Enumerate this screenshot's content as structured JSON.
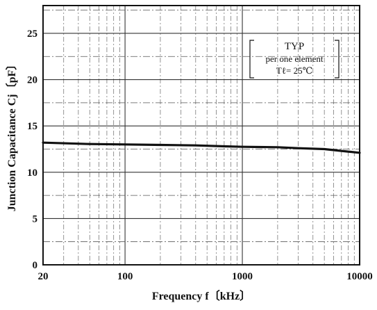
{
  "chart_data": {
    "type": "line",
    "x_scale": "log",
    "xlabel": "Frequency f〔kHz〕",
    "ylabel": "Junction Capacitance Cj〔pF〕",
    "xlim": [
      20,
      10000
    ],
    "ylim": [
      0,
      28
    ],
    "x_ticks": [
      20,
      100,
      1000,
      10000
    ],
    "x_tick_labels": [
      "20",
      "100",
      "1000",
      "10000"
    ],
    "y_ticks": [
      0,
      5,
      10,
      15,
      20,
      25
    ],
    "y_tick_labels": [
      "0",
      "5",
      "10",
      "15",
      "20",
      "25"
    ],
    "grid": true,
    "annotation": {
      "lines": [
        "TYP",
        "per one element",
        "Tℓ= 25℃"
      ],
      "position": "top-right"
    },
    "series": [
      {
        "x": [
          20,
          50,
          100,
          200,
          400,
          700,
          1000,
          2000,
          3000,
          5000,
          7000,
          10000
        ],
        "y": [
          13.2,
          13.05,
          13.0,
          12.95,
          12.9,
          12.8,
          12.75,
          12.7,
          12.6,
          12.5,
          12.3,
          12.1
        ]
      }
    ]
  }
}
